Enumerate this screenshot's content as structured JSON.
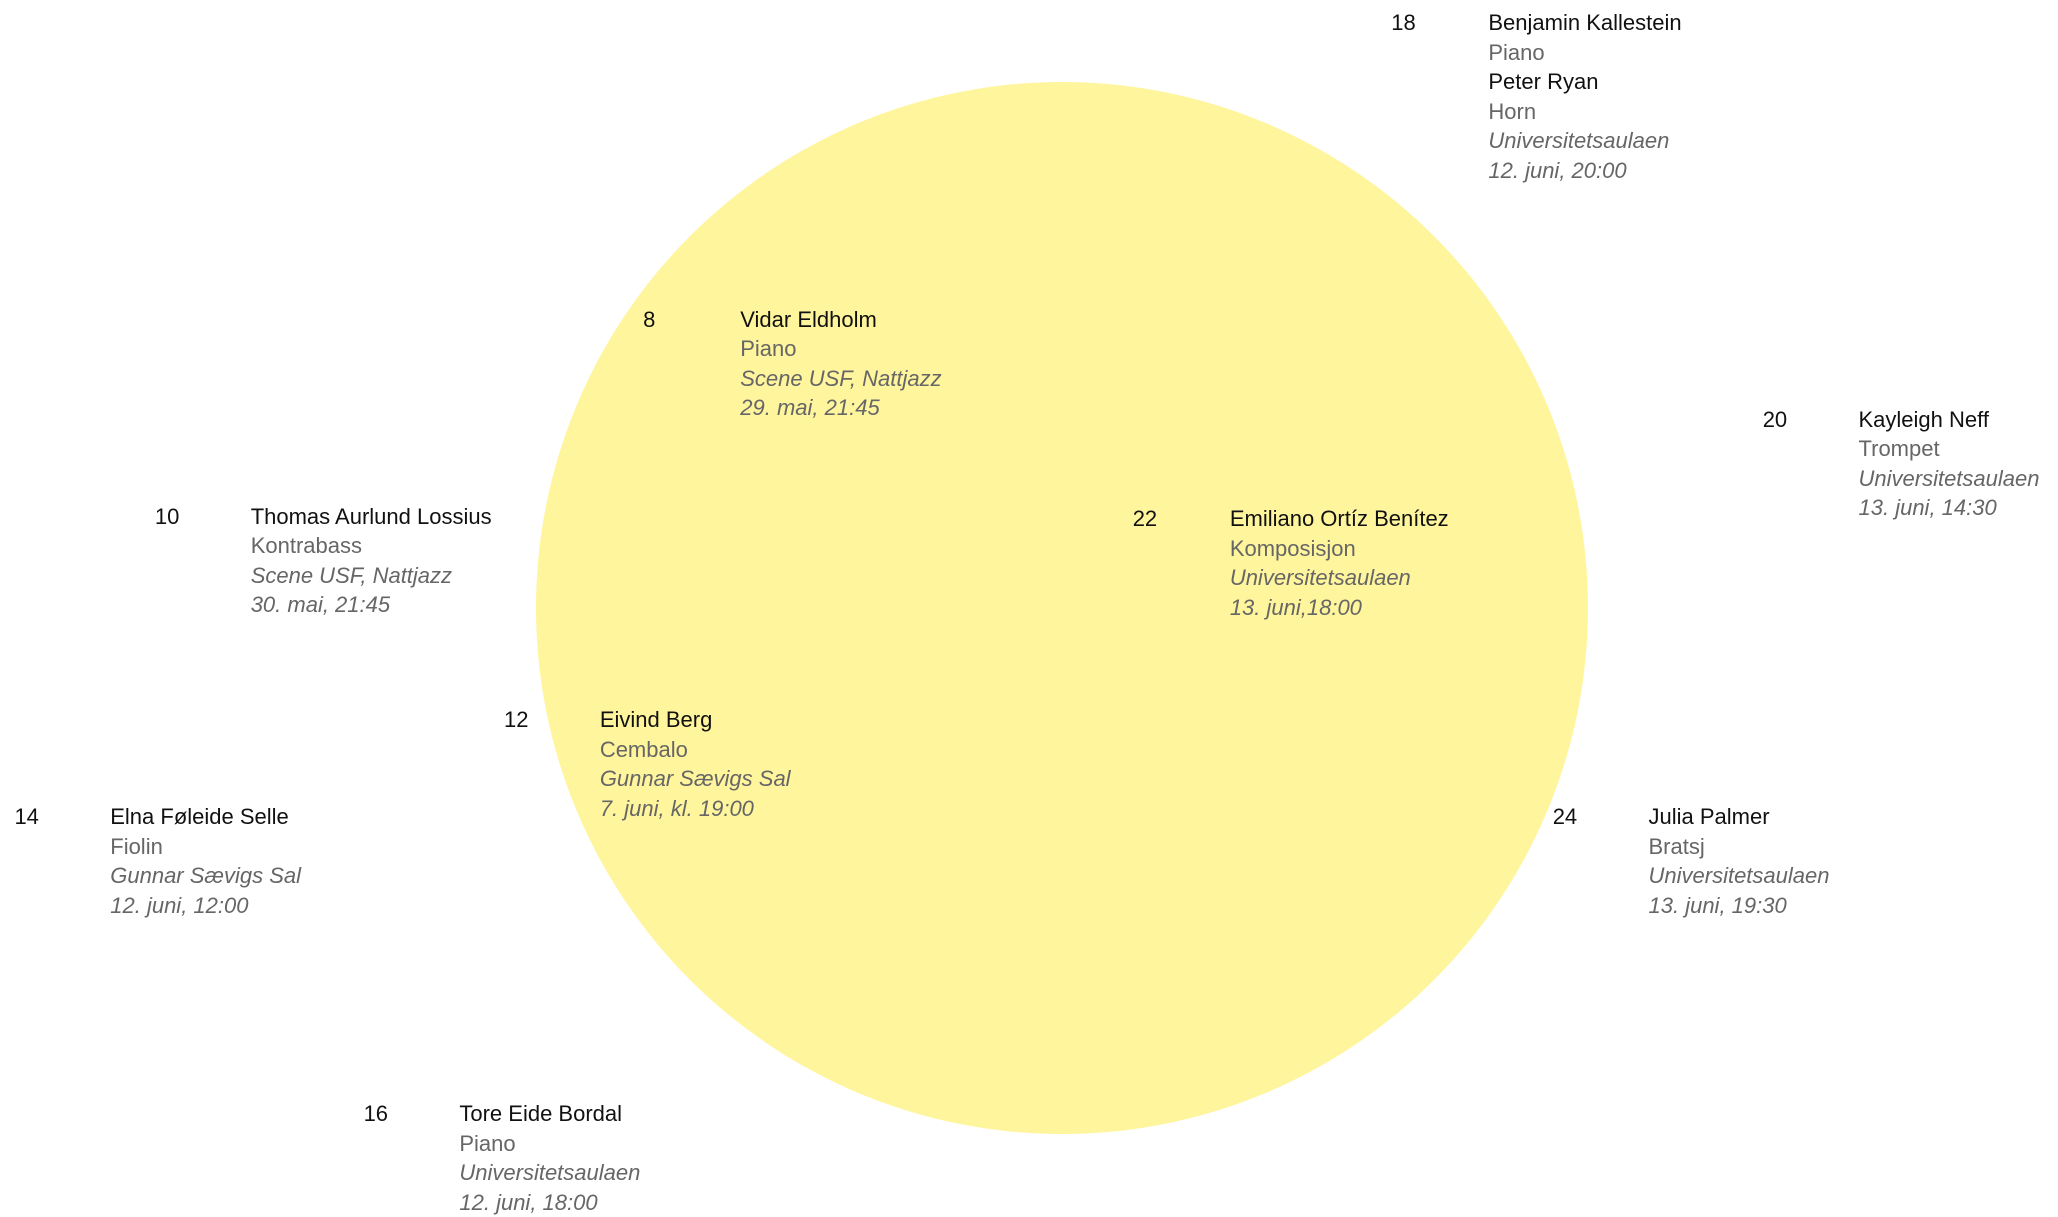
{
  "events": [
    {
      "number": 18,
      "performers": [
        {
          "name": "Benjamin Kallestein",
          "instrument": "Piano"
        },
        {
          "name": "Peter Ryan",
          "instrument": "Horn"
        }
      ],
      "venue": "Universitetsaulaen",
      "date": "12. juni, 20:00"
    },
    {
      "number": 8,
      "performers": [
        {
          "name": "Vidar Eldholm",
          "instrument": "Piano"
        }
      ],
      "venue": "Scene USF, Nattjazz",
      "date": "29. mai, 21:45"
    },
    {
      "number": 20,
      "performers": [
        {
          "name": "Kayleigh Neff",
          "instrument": "Trompet"
        }
      ],
      "venue": "Universitetsaulaen",
      "date": "13. juni, 14:30"
    },
    {
      "number": 10,
      "performers": [
        {
          "name": "Thomas Aurlund Lossius",
          "instrument": "Kontrabass"
        }
      ],
      "venue": "Scene USF, Nattjazz",
      "date": "30. mai, 21:45"
    },
    {
      "number": 22,
      "performers": [
        {
          "name": "Emiliano Ortíz Benítez",
          "instrument": "Komposisjon"
        }
      ],
      "venue": "Universitetsaulaen",
      "date": "13. juni,18:00"
    },
    {
      "number": 12,
      "performers": [
        {
          "name": "Eivind Berg",
          "instrument": "Cembalo"
        }
      ],
      "venue": "Gunnar Sævigs Sal",
      "date": "7. juni, kl. 19:00"
    },
    {
      "number": 14,
      "performers": [
        {
          "name": "Elna Føleide Selle",
          "instrument": "Fiolin"
        }
      ],
      "venue": "Gunnar Sævigs Sal",
      "date": "12. juni, 12:00"
    },
    {
      "number": 24,
      "performers": [
        {
          "name": "Julia Palmer",
          "instrument": "Bratsj"
        }
      ],
      "venue": "Universitetsaulaen",
      "date": "13. juni, 19:30"
    },
    {
      "number": 16,
      "performers": [
        {
          "name": "Tore Eide Bordal",
          "instrument": "Piano"
        }
      ],
      "venue": "Universitetsaulaen",
      "date": "12. juni, 18:00"
    }
  ]
}
